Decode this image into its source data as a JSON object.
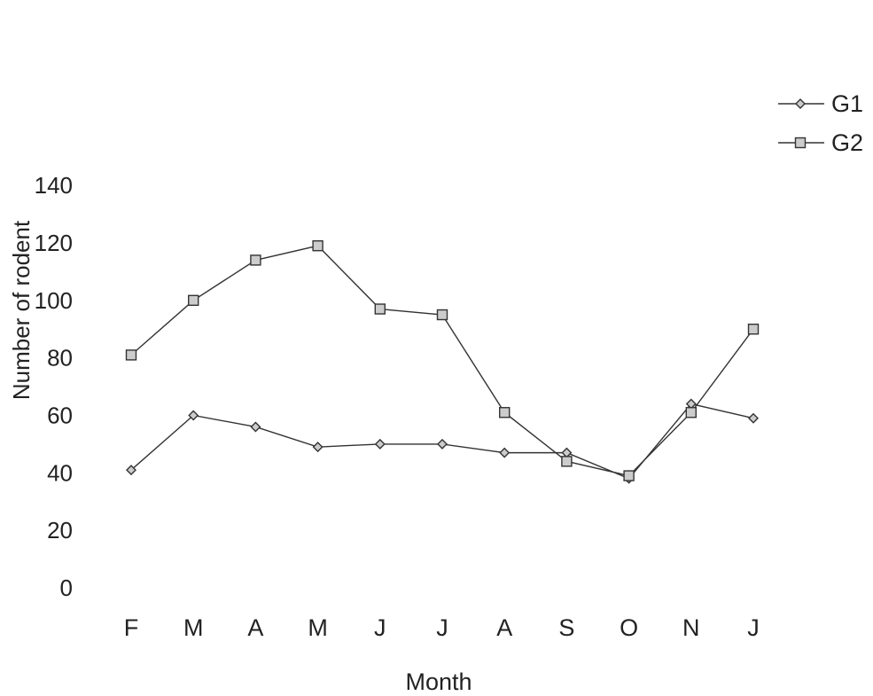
{
  "chart_data": {
    "type": "line",
    "title": "",
    "xlabel": "Month",
    "ylabel": "Number of rodent",
    "categories": [
      "F",
      "M",
      "A",
      "M",
      "J",
      "J",
      "A",
      "S",
      "O",
      "N",
      "J"
    ],
    "y_ticks": [
      "0",
      "20",
      "40",
      "60",
      "80",
      "100",
      "120",
      "140"
    ],
    "ylim": [
      0,
      140
    ],
    "grid": false,
    "legend_position": "right",
    "series": [
      {
        "name": "G1",
        "marker": "diamond",
        "values": [
          41,
          60,
          56,
          49,
          50,
          50,
          47,
          47,
          38,
          64,
          59
        ]
      },
      {
        "name": "G2",
        "marker": "square",
        "values": [
          81,
          100,
          114,
          119,
          97,
          95,
          61,
          44,
          39,
          61,
          90
        ]
      }
    ],
    "colors": {
      "line": "#333333",
      "marker_fill": "#cccccc",
      "marker_stroke": "#333333"
    }
  }
}
